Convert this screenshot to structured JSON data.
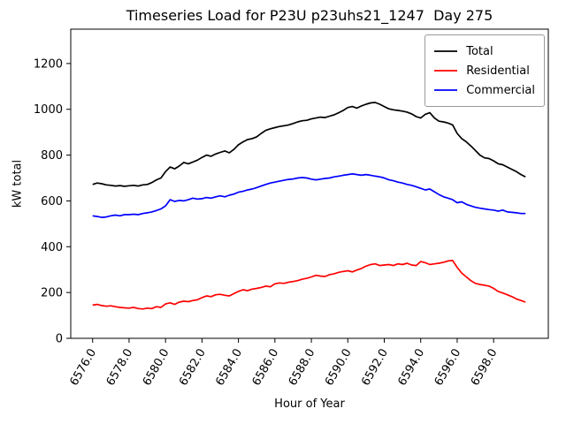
{
  "chart_data": {
    "type": "line",
    "title": "Timeseries Load for P23U p23uhs21_1247  Day 275",
    "xlabel": "Hour of Year",
    "ylabel": "kW total",
    "grid": false,
    "legend_position": "upper right",
    "xlim": [
      6574.8,
      6601.0
    ],
    "ylim": [
      0,
      1350
    ],
    "x_start": 6576.0,
    "x_step": 0.25,
    "xticks": [
      6576.0,
      6578.0,
      6580.0,
      6582.0,
      6584.0,
      6586.0,
      6588.0,
      6590.0,
      6592.0,
      6594.0,
      6596.0,
      6598.0
    ],
    "xtick_labels": [
      "6576.0",
      "6578.0",
      "6580.0",
      "6582.0",
      "6584.0",
      "6586.0",
      "6588.0",
      "6590.0",
      "6592.0",
      "6594.0",
      "6596.0",
      "6598.0"
    ],
    "yticks": [
      0,
      200,
      400,
      600,
      800,
      1000,
      1200
    ],
    "series": [
      {
        "name": "Total",
        "color": "#000000",
        "values": [
          672,
          678,
          675,
          670,
          668,
          665,
          667,
          664,
          666,
          668,
          665,
          670,
          672,
          680,
          692,
          700,
          728,
          748,
          740,
          752,
          768,
          762,
          770,
          778,
          790,
          800,
          795,
          805,
          812,
          818,
          810,
          825,
          845,
          858,
          868,
          872,
          880,
          895,
          908,
          915,
          920,
          925,
          928,
          932,
          938,
          945,
          950,
          952,
          958,
          962,
          966,
          964,
          970,
          976,
          985,
          995,
          1008,
          1012,
          1005,
          1015,
          1022,
          1028,
          1030,
          1022,
          1012,
          1002,
          998,
          995,
          992,
          988,
          980,
          968,
          962,
          978,
          985,
          962,
          948,
          945,
          940,
          932,
          895,
          872,
          858,
          840,
          820,
          800,
          788,
          785,
          775,
          762,
          758,
          748,
          738,
          728,
          715,
          705
        ]
      },
      {
        "name": "Residential",
        "color": "#ff0000",
        "values": [
          145,
          148,
          143,
          140,
          142,
          138,
          135,
          133,
          132,
          135,
          130,
          128,
          132,
          130,
          138,
          135,
          150,
          155,
          148,
          158,
          162,
          160,
          165,
          168,
          178,
          185,
          182,
          190,
          192,
          188,
          185,
          195,
          205,
          212,
          208,
          215,
          218,
          222,
          228,
          225,
          238,
          242,
          240,
          245,
          248,
          252,
          258,
          262,
          268,
          275,
          272,
          270,
          278,
          282,
          288,
          292,
          295,
          290,
          298,
          305,
          315,
          322,
          325,
          318,
          320,
          322,
          318,
          325,
          322,
          328,
          320,
          318,
          335,
          330,
          322,
          325,
          328,
          332,
          338,
          340,
          310,
          285,
          268,
          252,
          240,
          235,
          232,
          228,
          218,
          205,
          198,
          190,
          182,
          172,
          165,
          158
        ]
      },
      {
        "name": "Commercial",
        "color": "#0000ff",
        "values": [
          535,
          532,
          528,
          530,
          535,
          538,
          535,
          540,
          540,
          542,
          540,
          545,
          548,
          552,
          558,
          565,
          578,
          605,
          598,
          602,
          600,
          605,
          612,
          608,
          610,
          615,
          612,
          618,
          622,
          618,
          625,
          630,
          638,
          642,
          648,
          652,
          658,
          665,
          672,
          678,
          682,
          686,
          690,
          694,
          696,
          700,
          702,
          700,
          695,
          692,
          695,
          698,
          700,
          705,
          708,
          712,
          715,
          718,
          715,
          712,
          715,
          712,
          708,
          705,
          700,
          692,
          688,
          682,
          678,
          672,
          668,
          662,
          655,
          648,
          652,
          640,
          628,
          618,
          612,
          605,
          592,
          596,
          585,
          578,
          572,
          568,
          565,
          562,
          560,
          555,
          560,
          552,
          550,
          548,
          545,
          545
        ]
      }
    ]
  }
}
